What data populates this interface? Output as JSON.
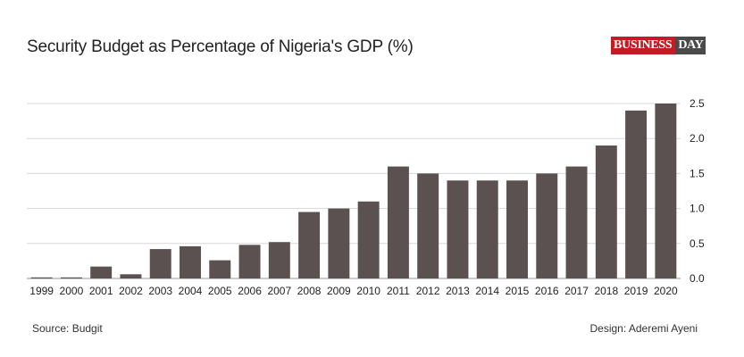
{
  "header": {
    "title": "Security Budget as Percentage of Nigeria's GDP (%)",
    "logo_part1": "BUSINESS",
    "logo_part2": "DAY"
  },
  "footer": {
    "source": "Source: Budgit",
    "design": "Design: Aderemi Ayeni"
  },
  "colors": {
    "bar": "#5a5150",
    "grid": "#d8d8d8",
    "logo_red": "#c41b24",
    "logo_dark": "#4a4a4a"
  },
  "chart_data": {
    "type": "bar",
    "title": "Security Budget as Percentage of Nigeria's GDP (%)",
    "xlabel": "",
    "ylabel": "",
    "categories": [
      "1999",
      "2000",
      "2001",
      "2002",
      "2003",
      "2004",
      "2005",
      "2006",
      "2007",
      "2008",
      "2009",
      "2010",
      "2011",
      "2012",
      "2013",
      "2014",
      "2015",
      "2016",
      "2017",
      "2018",
      "2019",
      "2020"
    ],
    "values": [
      0.01,
      0.01,
      0.17,
      0.06,
      0.42,
      0.46,
      0.26,
      0.48,
      0.52,
      0.95,
      1.0,
      1.1,
      1.6,
      1.5,
      1.4,
      1.4,
      1.4,
      1.5,
      1.6,
      1.9,
      2.4,
      2.5
    ],
    "y_ticks": [
      "0.0",
      "0.5",
      "1.0",
      "1.5",
      "2.0",
      "2.5"
    ],
    "ylim": [
      0,
      2.5
    ],
    "y_axis_side": "right",
    "grid": true
  }
}
